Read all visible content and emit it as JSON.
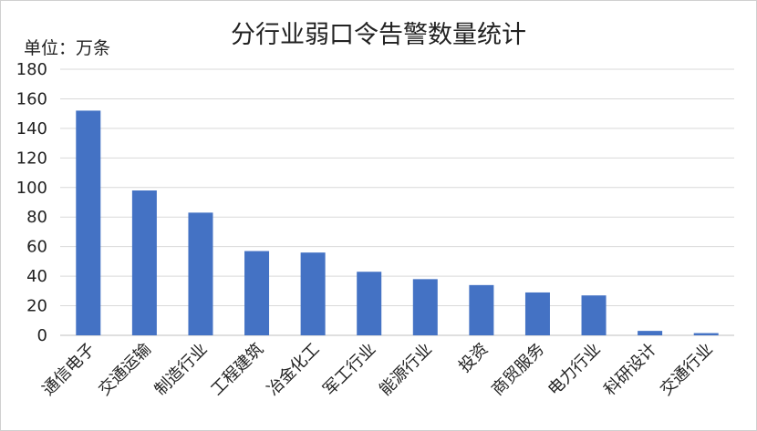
{
  "chart_data": {
    "type": "bar",
    "title": "分行业弱口令告警数量统计",
    "unit_label": "单位：万条",
    "categories": [
      "通信电子",
      "交通运输",
      "制造行业",
      "工程建筑",
      "冶金化工",
      "军工行业",
      "能源行业",
      "投资",
      "商贸服务",
      "电力行业",
      "科研设计",
      "交通行业"
    ],
    "values": [
      152,
      98,
      83,
      57,
      56,
      43,
      38,
      34,
      29,
      27,
      3,
      1.5
    ],
    "ylim": [
      0,
      180
    ],
    "yticks": [
      0,
      20,
      40,
      60,
      80,
      100,
      120,
      140,
      160,
      180
    ],
    "grid": true,
    "bar_color": "#4472c4",
    "grid_color": "#d9d9d9"
  }
}
